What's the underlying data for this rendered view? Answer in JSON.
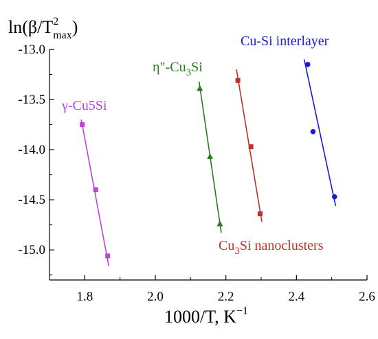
{
  "chart_data": {
    "type": "scatter",
    "title": "",
    "ylabel": {
      "base": "ln(β/T",
      "sup": "2",
      "sub": "max",
      "close": ")"
    },
    "xlabel": {
      "base": "1000/T, K",
      "sup": "−1"
    },
    "xlim": [
      1.7,
      2.6
    ],
    "ylim": [
      -15.3,
      -13.0
    ],
    "xticks": [
      {
        "value": 1.8,
        "label": "1.8"
      },
      {
        "value": 2.0,
        "label": "2.0"
      },
      {
        "value": 2.2,
        "label": "2.2"
      },
      {
        "value": 2.4,
        "label": "2.4"
      },
      {
        "value": 2.6,
        "label": "2.6"
      }
    ],
    "yticks": [
      {
        "value": -13.0,
        "label": "-13.0"
      },
      {
        "value": -13.5,
        "label": "-13.5"
      },
      {
        "value": -14.0,
        "label": "-14.0"
      },
      {
        "value": -14.5,
        "label": "-14.5"
      },
      {
        "value": -15.0,
        "label": "-15.0"
      }
    ],
    "grid": false,
    "series": [
      {
        "name": "γ-Cu5Si",
        "label_parts": [
          {
            "t": "γ-Cu5Si",
            "sub": false
          }
        ],
        "color": "#c040e0",
        "marker": "square",
        "points": [
          [
            1.793,
            -13.75
          ],
          [
            1.831,
            -14.4
          ],
          [
            1.865,
            -15.06
          ]
        ],
        "fit": [
          [
            1.79,
            -13.7
          ],
          [
            1.868,
            -15.16
          ]
        ]
      },
      {
        "name": "η\"-Cu3Si",
        "label_parts": [
          {
            "t": "η\"-Cu",
            "sub": false
          },
          {
            "t": "3",
            "sub": true
          },
          {
            "t": "Si",
            "sub": false
          }
        ],
        "color": "#2a7a1e",
        "marker": "triangle",
        "points": [
          [
            2.126,
            -13.39
          ],
          [
            2.155,
            -14.07
          ],
          [
            2.183,
            -14.74
          ]
        ],
        "fit": [
          [
            2.124,
            -13.32
          ],
          [
            2.187,
            -14.83
          ]
        ]
      },
      {
        "name": "Cu3Si nanoclusters",
        "label_parts": [
          {
            "t": "Cu",
            "sub": false
          },
          {
            "t": "3",
            "sub": true
          },
          {
            "t": "Si nanoclusters",
            "sub": false
          }
        ],
        "color": "#c0302a",
        "marker": "square",
        "points": [
          [
            2.234,
            -13.31
          ],
          [
            2.271,
            -13.97
          ],
          [
            2.297,
            -14.64
          ]
        ],
        "fit": [
          [
            2.23,
            -13.2
          ],
          [
            2.302,
            -14.72
          ]
        ]
      },
      {
        "name": "Cu-Si interlayer",
        "label_parts": [
          {
            "t": "Cu-Si interlayer",
            "sub": false
          }
        ],
        "color": "#1a1ad0",
        "marker": "circle",
        "points": [
          [
            2.432,
            -13.15
          ],
          [
            2.447,
            -13.82
          ],
          [
            2.508,
            -14.47
          ]
        ],
        "fit": [
          [
            2.422,
            -13.1
          ],
          [
            2.511,
            -14.56
          ]
        ]
      }
    ]
  }
}
